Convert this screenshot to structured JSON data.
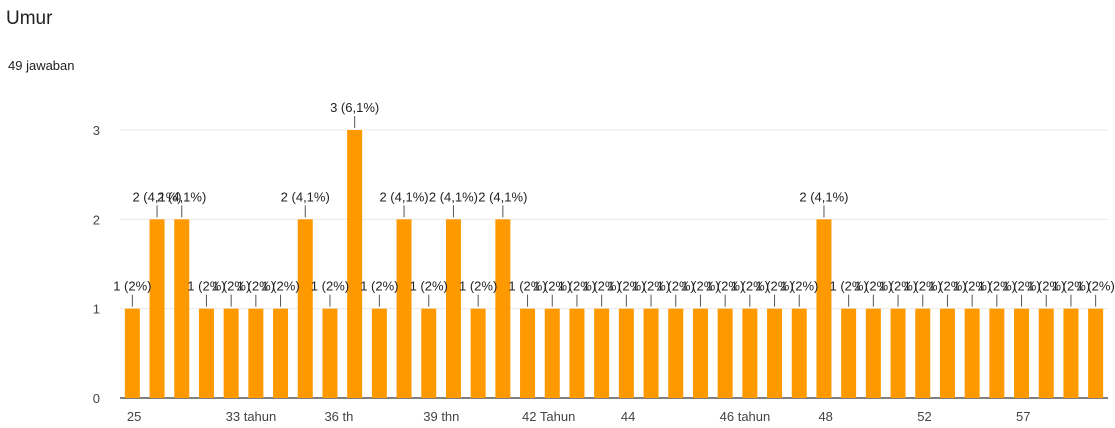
{
  "question": {
    "title": "Umur",
    "responses": "49 jawaban"
  },
  "colors": {
    "bar": "#ff9900",
    "grid": "#e8e8e8",
    "axis": "#333333",
    "text": "#222222"
  },
  "chart_data": {
    "type": "bar",
    "title": "",
    "xlabel": "",
    "ylabel": "",
    "ylim": [
      0,
      3
    ],
    "yticks": [
      0,
      1,
      2,
      3
    ],
    "grid": true,
    "legend": "none",
    "values": [
      1,
      2,
      2,
      1,
      1,
      1,
      1,
      2,
      1,
      3,
      1,
      2,
      1,
      2,
      1,
      2,
      1,
      1,
      1,
      1,
      1,
      1,
      1,
      1,
      1,
      1,
      1,
      1,
      2,
      1,
      1,
      1,
      1,
      1,
      1,
      1,
      1,
      1,
      1,
      1
    ],
    "labels": [
      "1 (2%)",
      "2 (4,1%)",
      "2 (4,1%)",
      "1 (2%)",
      "1 (2%)",
      "1 (2%)",
      "1 (2%)",
      "2 (4,1%)",
      "1 (2%)",
      "3 (6,1%)",
      "1 (2%)",
      "2 (4,1%)",
      "1 (2%)",
      "2 (4,1%)",
      "1 (2%)",
      "2 (4,1%)",
      "1 (2%)",
      "1 (2%)",
      "1 (2%)",
      "1 (2%)",
      "1 (2%)",
      "1 (2%)",
      "1 (2%)",
      "1 (2%)",
      "1 (2%)",
      "1 (2%)",
      "1 (2%)",
      "1 (2%)",
      "2 (4,1%)",
      "1 (2%)",
      "1 (2%)",
      "1 (2%)",
      "1 (2%)",
      "1 (2%)",
      "1 (2%)",
      "1 (2%)",
      "1 (2%)",
      "1 (2%)",
      "1 (2%)",
      "1 (2%)"
    ],
    "x_tick_labels": [
      {
        "index": 0,
        "label": "25"
      },
      {
        "index": 4,
        "label": "33 tahun"
      },
      {
        "index": 8,
        "label": "36 th"
      },
      {
        "index": 12,
        "label": "39 thn"
      },
      {
        "index": 16,
        "label": "42 Tahun"
      },
      {
        "index": 20,
        "label": "44"
      },
      {
        "index": 24,
        "label": "46 tahun"
      },
      {
        "index": 28,
        "label": "48"
      },
      {
        "index": 32,
        "label": "52"
      },
      {
        "index": 36,
        "label": "57"
      }
    ]
  }
}
